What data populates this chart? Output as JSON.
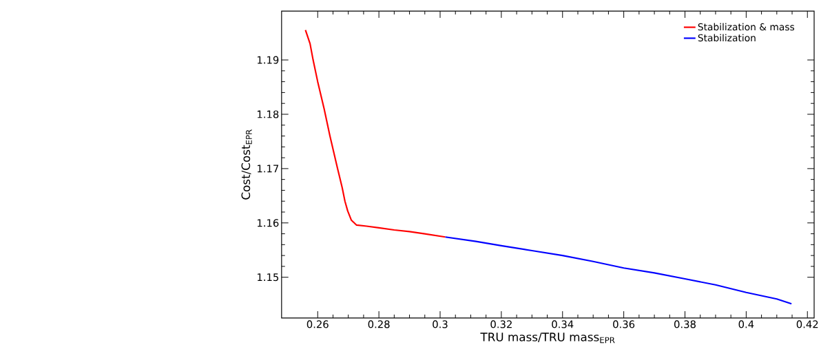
{
  "chart_data": {
    "type": "line",
    "xlabel": "TRU mass/TRU mass$_{EPR}$",
    "ylabel": "Cost/Cost$_{EPR}$",
    "xlim": [
      0.2482,
      0.4222
    ],
    "ylim": [
      1.1425,
      1.199
    ],
    "xticks": [
      0.26,
      0.28,
      {
        "value": 0.3,
        "label": "0.3"
      },
      0.32,
      0.34,
      0.36,
      0.38,
      {
        "value": 0.4,
        "label": "0.4"
      },
      0.42
    ],
    "yticks": [
      1.15,
      1.16,
      1.17,
      1.18,
      1.19
    ],
    "legend": "top right",
    "grid": false,
    "marker": "none",
    "line_style": "solid",
    "series": [
      {
        "name": "Stabilization & mass",
        "color": "#ff0000",
        "x": [
          0.256,
          0.2575,
          0.2585,
          0.26,
          0.2621,
          0.264,
          0.2665,
          0.268,
          0.2689,
          0.2698,
          0.271,
          0.2727,
          0.276,
          0.28,
          0.285,
          0.29,
          0.295,
          0.3017
        ],
        "values": [
          1.1955,
          1.193,
          1.19,
          1.186,
          1.181,
          1.176,
          1.17,
          1.1665,
          1.164,
          1.1622,
          1.1605,
          1.1596,
          1.1594,
          1.1591,
          1.1587,
          1.1584,
          1.158,
          1.1574
        ]
      },
      {
        "name": "Stabilization",
        "color": "#0000ff",
        "x": [
          0.3017,
          0.3117,
          0.32,
          0.33,
          0.34,
          0.35,
          0.36,
          0.37,
          0.38,
          0.39,
          0.4,
          0.41,
          0.4148
        ],
        "values": [
          1.1574,
          1.1566,
          1.1558,
          1.1549,
          1.154,
          1.1529,
          1.1517,
          1.1508,
          1.1497,
          1.1486,
          1.1472,
          1.146,
          1.1451
        ]
      }
    ]
  }
}
